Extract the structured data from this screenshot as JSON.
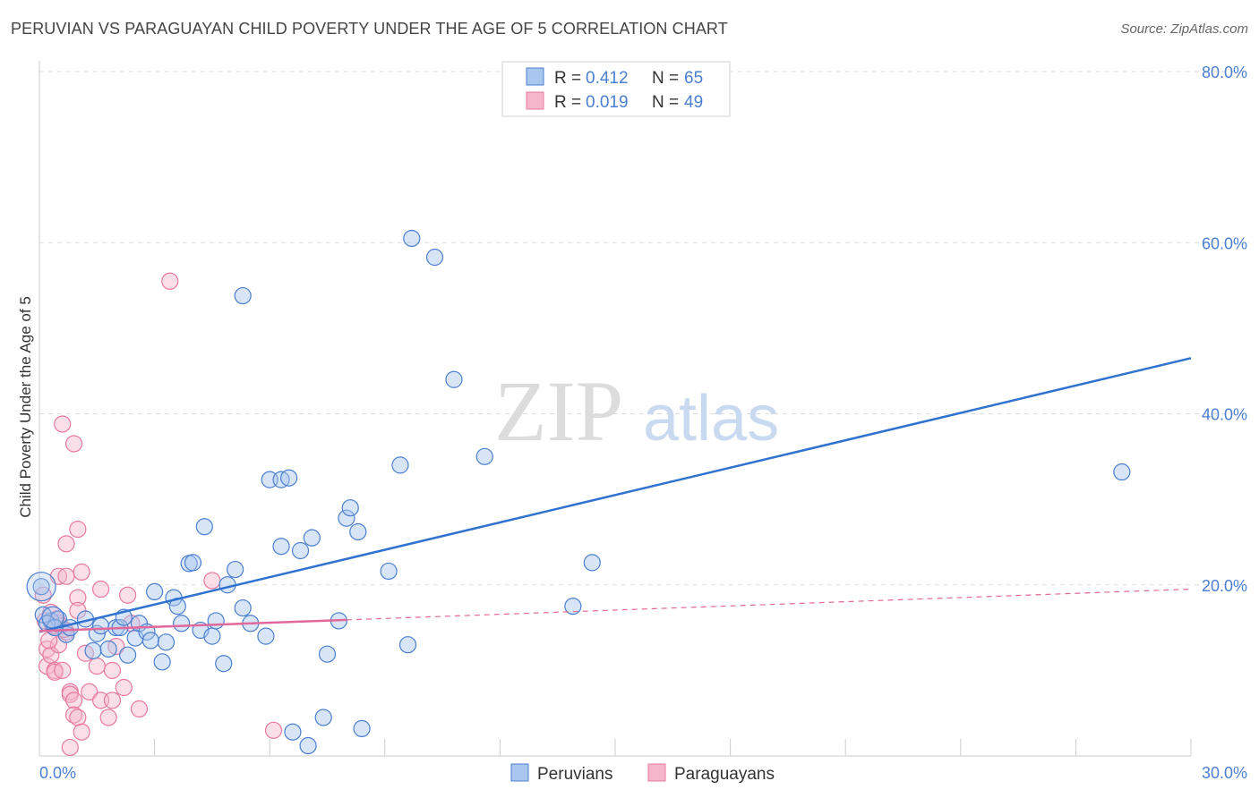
{
  "title": "PERUVIAN VS PARAGUAYAN CHILD POVERTY UNDER THE AGE OF 5 CORRELATION CHART",
  "source": "Source: ZipAtlas.com",
  "colors": {
    "blue": "#4a7fd0",
    "blue_fill": "#a9c6ee",
    "blue_line": "#2f72cf",
    "pink": "#e87aa0",
    "pink_fill": "#f5b6cb",
    "pink_line": "#e0689a"
  },
  "watermark": {
    "zip": "ZIP",
    "atlas": "atlas"
  },
  "legend": {
    "rows": [
      {
        "r_label": "R = ",
        "r_value": "0.412",
        "n_label": "N = ",
        "n_value": "65"
      },
      {
        "r_label": "R = ",
        "r_value": "0.019",
        "n_label": "N = ",
        "n_value": "49"
      }
    ]
  },
  "chart_data": {
    "type": "scatter",
    "title": "PERUVIAN VS PARAGUAYAN CHILD POVERTY UNDER THE AGE OF 5 CORRELATION CHART",
    "xlabel": "",
    "ylabel": "Child Poverty Under the Age of 5",
    "xlim": [
      0,
      30
    ],
    "ylim": [
      0,
      80
    ],
    "x_tick_labels": [
      "0.0%",
      "30.0%"
    ],
    "y_ticks": [
      20,
      40,
      60,
      80
    ],
    "y_tick_labels": [
      "20.0%",
      "40.0%",
      "60.0%",
      "80.0%"
    ],
    "grid": true,
    "series": [
      {
        "name": "Peruvians",
        "r": 0.412,
        "n": 65,
        "trend": {
          "x": [
            0,
            30
          ],
          "y": [
            14.5,
            46.5
          ]
        },
        "points": [
          [
            0.05,
            19.8
          ],
          [
            0.3,
            15.8
          ],
          [
            0.5,
            16.0
          ],
          [
            0.7,
            14.2
          ],
          [
            0.8,
            15.0
          ],
          [
            1.2,
            16.0
          ],
          [
            1.4,
            12.3
          ],
          [
            1.5,
            14.3
          ],
          [
            1.6,
            15.2
          ],
          [
            1.8,
            12.5
          ],
          [
            2.0,
            15.0
          ],
          [
            2.1,
            15.0
          ],
          [
            2.2,
            16.2
          ],
          [
            2.3,
            11.8
          ],
          [
            2.5,
            13.8
          ],
          [
            2.6,
            15.5
          ],
          [
            2.8,
            14.5
          ],
          [
            2.9,
            13.5
          ],
          [
            3.0,
            19.2
          ],
          [
            3.2,
            11.0
          ],
          [
            3.3,
            13.3
          ],
          [
            3.5,
            18.5
          ],
          [
            3.6,
            17.5
          ],
          [
            3.7,
            15.5
          ],
          [
            3.9,
            22.5
          ],
          [
            4.0,
            22.6
          ],
          [
            4.2,
            14.7
          ],
          [
            4.3,
            26.8
          ],
          [
            4.5,
            14.0
          ],
          [
            4.6,
            15.8
          ],
          [
            4.8,
            10.8
          ],
          [
            4.9,
            20.0
          ],
          [
            5.1,
            21.8
          ],
          [
            5.3,
            17.3
          ],
          [
            5.5,
            15.5
          ],
          [
            5.3,
            53.8
          ],
          [
            5.9,
            14.0
          ],
          [
            6.0,
            32.3
          ],
          [
            6.3,
            32.3
          ],
          [
            6.5,
            32.5
          ],
          [
            6.3,
            24.5
          ],
          [
            6.8,
            24.0
          ],
          [
            7.1,
            25.5
          ],
          [
            6.6,
            2.8
          ],
          [
            7.0,
            1.2
          ],
          [
            7.4,
            4.5
          ],
          [
            7.5,
            11.9
          ],
          [
            7.8,
            15.8
          ],
          [
            8.0,
            27.8
          ],
          [
            8.1,
            29.0
          ],
          [
            8.3,
            26.2
          ],
          [
            8.4,
            3.2
          ],
          [
            9.1,
            21.6
          ],
          [
            9.4,
            34.0
          ],
          [
            9.6,
            13.0
          ],
          [
            9.7,
            60.5
          ],
          [
            10.3,
            58.3
          ],
          [
            10.8,
            44.0
          ],
          [
            11.6,
            35.0
          ],
          [
            13.9,
            17.5
          ],
          [
            14.4,
            22.6
          ],
          [
            28.2,
            33.2
          ],
          [
            0.1,
            16.5
          ],
          [
            0.2,
            15.5
          ],
          [
            0.4,
            15.0
          ]
        ]
      },
      {
        "name": "Paraguayans",
        "r": 0.019,
        "n": 49,
        "trend": {
          "x": [
            0,
            30
          ],
          "y": [
            14.6,
            19.5
          ]
        },
        "trend_solid_until_x": 8.0,
        "points": [
          [
            0.1,
            18.8
          ],
          [
            0.2,
            12.5
          ],
          [
            0.2,
            10.5
          ],
          [
            0.3,
            11.8
          ],
          [
            0.3,
            16.8
          ],
          [
            0.4,
            10.0
          ],
          [
            0.4,
            9.8
          ],
          [
            0.5,
            21.0
          ],
          [
            0.5,
            15.5
          ],
          [
            0.5,
            13.0
          ],
          [
            0.6,
            10.0
          ],
          [
            0.6,
            38.8
          ],
          [
            0.7,
            24.8
          ],
          [
            0.7,
            21.0
          ],
          [
            0.7,
            14.5
          ],
          [
            0.8,
            7.5
          ],
          [
            0.8,
            7.2
          ],
          [
            0.8,
            1.0
          ],
          [
            0.9,
            6.5
          ],
          [
            0.9,
            4.8
          ],
          [
            0.9,
            36.5
          ],
          [
            1.0,
            26.5
          ],
          [
            1.0,
            18.5
          ],
          [
            1.0,
            17.0
          ],
          [
            1.0,
            4.5
          ],
          [
            1.1,
            21.5
          ],
          [
            1.1,
            2.8
          ],
          [
            1.2,
            12.0
          ],
          [
            1.3,
            7.5
          ],
          [
            1.5,
            10.5
          ],
          [
            1.6,
            19.5
          ],
          [
            1.6,
            6.5
          ],
          [
            1.8,
            4.5
          ],
          [
            1.9,
            6.5
          ],
          [
            1.9,
            10.0
          ],
          [
            2.0,
            12.8
          ],
          [
            2.2,
            8.0
          ],
          [
            2.3,
            18.8
          ],
          [
            2.4,
            15.5
          ],
          [
            2.6,
            5.5
          ],
          [
            3.4,
            55.5
          ],
          [
            4.5,
            20.5
          ],
          [
            6.1,
            3.0
          ],
          [
            0.15,
            15.8
          ],
          [
            0.35,
            15.2
          ],
          [
            0.45,
            16.0
          ],
          [
            0.55,
            15.2
          ],
          [
            0.65,
            14.8
          ],
          [
            0.25,
            13.5
          ]
        ]
      }
    ]
  }
}
